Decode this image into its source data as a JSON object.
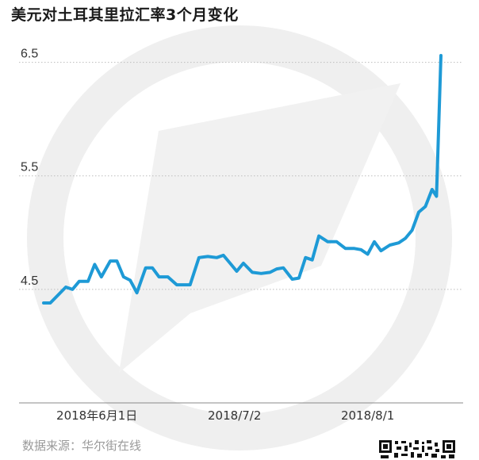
{
  "title": "美元对土耳其里拉汇率3个月变化",
  "source": "数据来源：华尔街在线",
  "colors": {
    "line": "#1e9ad6",
    "grid": "#bdbdbd",
    "watermark": "#ececec",
    "text": "#333333"
  },
  "chart_data": {
    "type": "line",
    "title": "美元对土耳其里拉汇率3个月变化",
    "xlabel": "",
    "ylabel": "",
    "ylim": [
      3.5,
      6.63
    ],
    "yticks": [
      4.5,
      5.5,
      6.5
    ],
    "xticks": [
      {
        "label": "2018年6月1日",
        "x": 12
      },
      {
        "label": "2018/7/2",
        "x": 43
      },
      {
        "label": "2018/8/1",
        "x": 73
      }
    ],
    "grid": "horizontal-dotted",
    "series": [
      {
        "x": [
          0,
          1.5,
          3.5,
          5,
          6.5,
          8,
          10,
          11.5,
          13,
          15,
          16.5,
          18,
          19.5,
          21,
          23,
          24.5,
          26,
          28,
          30,
          33,
          35,
          37,
          39,
          40.5,
          42,
          43.5,
          45,
          47,
          49,
          51,
          52.5,
          54,
          56,
          57.5,
          59,
          60.5,
          62,
          64,
          66,
          68,
          70,
          71.5,
          73,
          74.5,
          76,
          78,
          80,
          81.5,
          83,
          84.5,
          86,
          87.5,
          88.5,
          89.5
        ],
        "values": [
          4.38,
          4.38,
          4.46,
          4.52,
          4.5,
          4.57,
          4.57,
          4.72,
          4.61,
          4.75,
          4.75,
          4.61,
          4.58,
          4.47,
          4.69,
          4.69,
          4.61,
          4.61,
          4.54,
          4.54,
          4.78,
          4.79,
          4.78,
          4.8,
          4.73,
          4.66,
          4.73,
          4.65,
          4.64,
          4.65,
          4.68,
          4.69,
          4.59,
          4.6,
          4.78,
          4.76,
          4.97,
          4.92,
          4.92,
          4.86,
          4.86,
          4.85,
          4.81,
          4.92,
          4.84,
          4.89,
          4.91,
          4.95,
          5.02,
          5.18,
          5.23,
          5.38,
          5.32,
          6.56
        ]
      }
    ]
  }
}
